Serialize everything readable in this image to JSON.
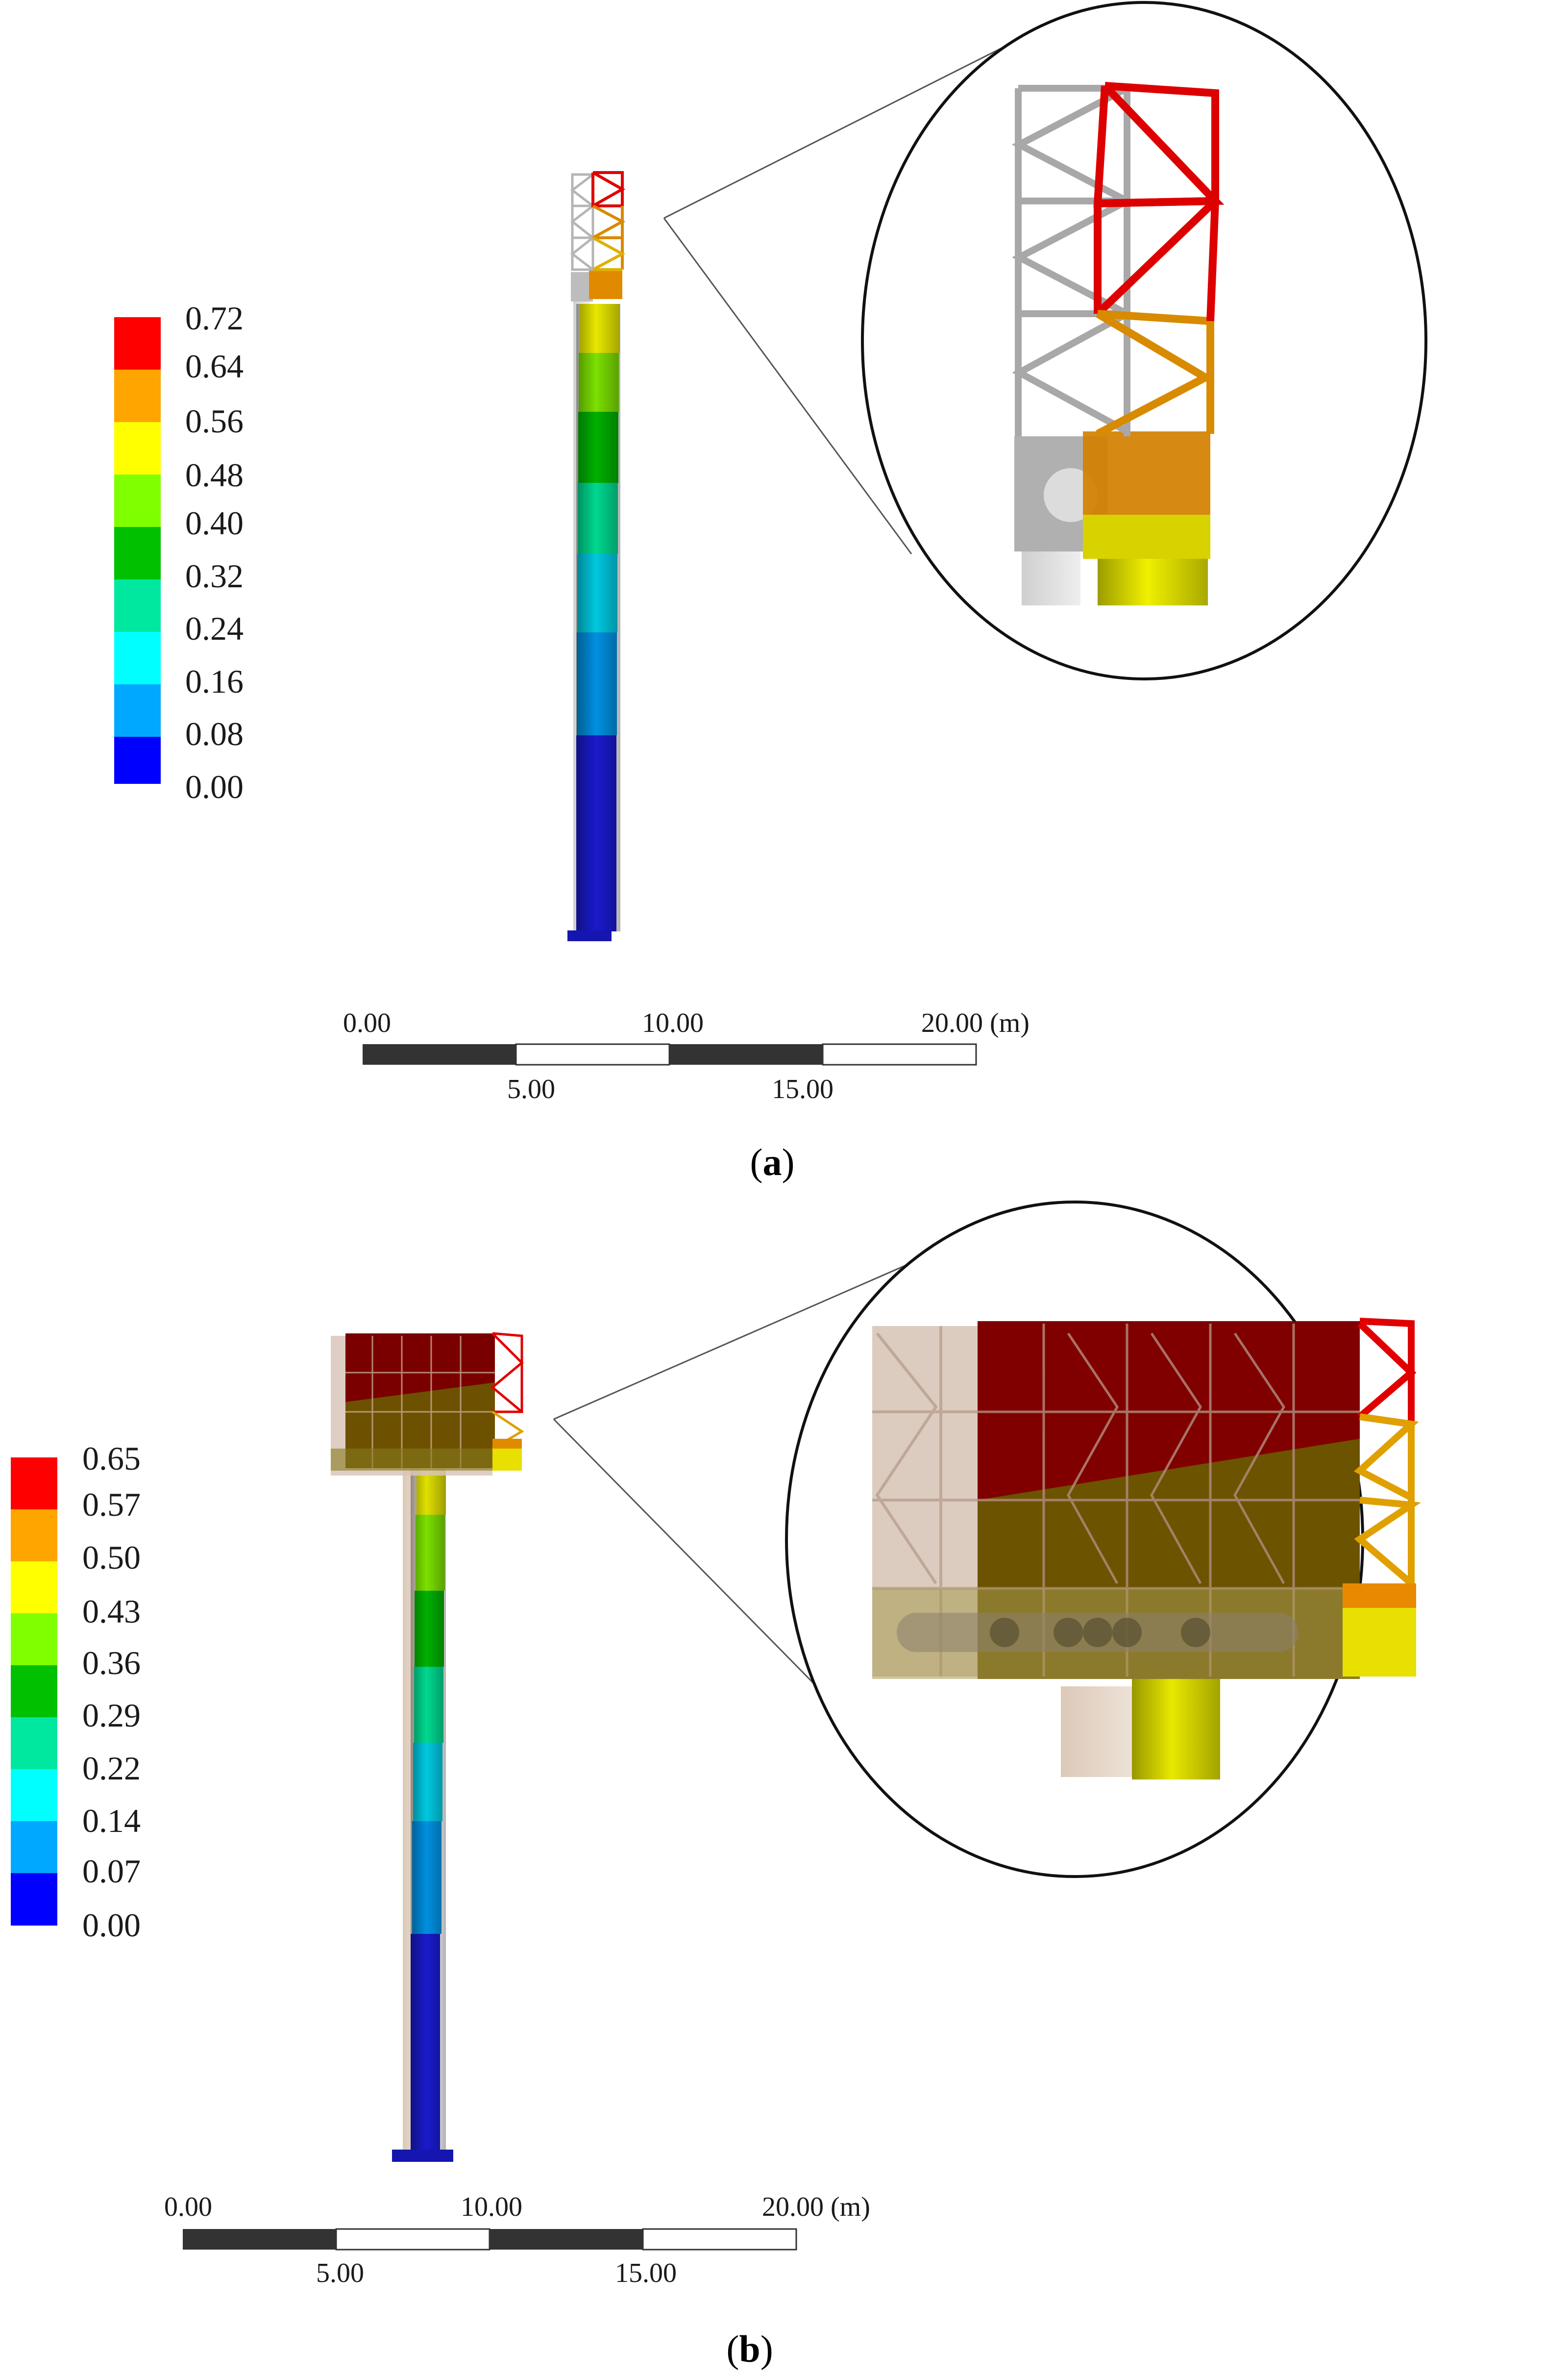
{
  "panels": [
    {
      "caption_letter": "a",
      "legend": {
        "values": [
          "0.72",
          "0.64",
          "0.56",
          "0.48",
          "0.40",
          "0.32",
          "0.24",
          "0.16",
          "0.08",
          "0.00"
        ],
        "colors": [
          "#ff0000",
          "#ffa500",
          "#ffff00",
          "#80ff00",
          "#00c000",
          "#00e8a0",
          "#00ffff",
          "#00a8ff",
          "#0000ff"
        ]
      },
      "scale": {
        "top_labels": [
          "0.00",
          "10.00",
          "20.00 (m)"
        ],
        "bottom_labels": [
          "5.00",
          "15.00"
        ]
      }
    },
    {
      "caption_letter": "b",
      "legend": {
        "values": [
          "0.65",
          "0.57",
          "0.50",
          "0.43",
          "0.36",
          "0.29",
          "0.22",
          "0.14",
          "0.07",
          "0.00"
        ],
        "colors": [
          "#ff0000",
          "#ffa500",
          "#ffff00",
          "#80ff00",
          "#00c000",
          "#00e8a0",
          "#00ffff",
          "#00a8ff",
          "#0000ff"
        ]
      },
      "scale": {
        "top_labels": [
          "0.00",
          "10.00",
          "20.00 (m)"
        ],
        "bottom_labels": [
          "5.00",
          "15.00"
        ]
      }
    }
  ]
}
